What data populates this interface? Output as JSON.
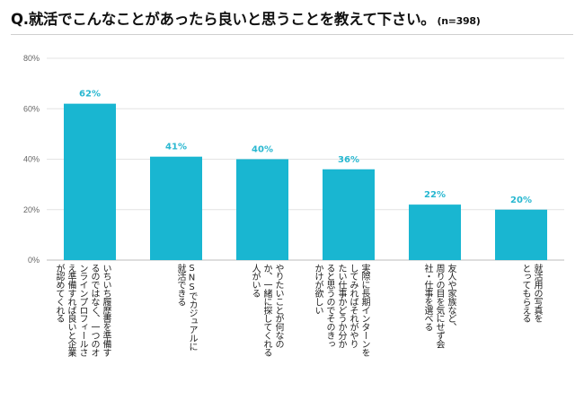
{
  "title": {
    "main": "Q.就活でこんなことがあったら良いと思うことを教えて下さい。",
    "n": "(n=398)"
  },
  "colors": {
    "bar": "#19b6d1",
    "value_label": "#27b7d0",
    "grid": "#e3e3e3"
  },
  "chart_data": {
    "type": "bar",
    "title": "Q.就活でこんなことがあったら良いと思うことを教えて下さい。",
    "subtitle": "(n=398)",
    "xlabel": "",
    "ylabel": "",
    "ylim": [
      0,
      80
    ],
    "yticks": [
      "0%",
      "20%",
      "40%",
      "60%",
      "80%"
    ],
    "grid": true,
    "legend": "none",
    "categories": [
      "いちいち履歴書を準備するのではなく、一つのオンラインプロフィールさえ準備すれば良いと企業が認めてくれる",
      "SNSでカジュアルに就活できる",
      "やりたいことが何なのか、一緒に探してくれる人がいる",
      "実際に長期インターンをしてみればそれがやりたい仕事かどうか分かると思うのでそのきっかけが欲しい",
      "友人や家族など、周りの目を気にせず会社・仕事を選べる",
      "就活用の写真をとってもらえる"
    ],
    "category_lines": [
      [
        "いちいち履歴書を準備す",
        "るのではなく、一つのオ",
        "ンラインプロフィールさ",
        "え準備すれば良いと企業",
        "が認めてくれる"
      ],
      [
        "SNSでカジュアルに",
        "就活できる"
      ],
      [
        "やりたいことが何なの",
        "か、一緒に探してくれる",
        "人がいる"
      ],
      [
        "実際に長期インターンを",
        "してみればそれがやり",
        "たい仕事かどうか分か",
        "ると思うのでそのきっ",
        "かけが欲しい"
      ],
      [
        "友人や家族など、",
        "周りの目を気にせず会",
        "社・仕事を選べる"
      ],
      [
        "就活用の写真を",
        "とってもらえる"
      ]
    ],
    "values": [
      62,
      41,
      40,
      36,
      22,
      20
    ],
    "value_labels": [
      "62%",
      "41%",
      "40%",
      "36%",
      "22%",
      "20%"
    ]
  }
}
